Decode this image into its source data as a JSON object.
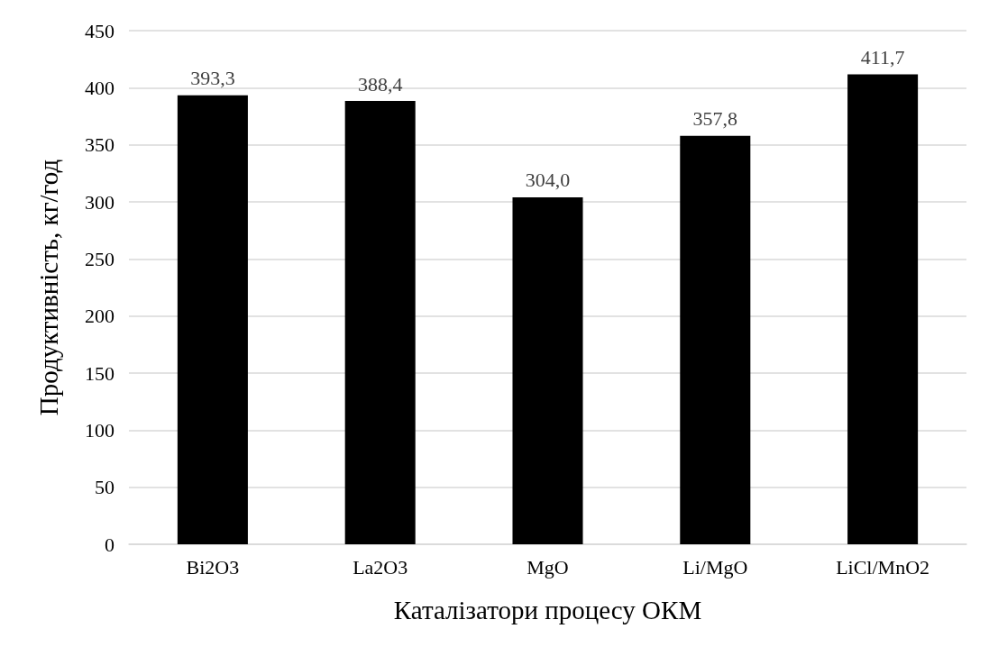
{
  "chart_data": {
    "type": "bar",
    "xlabel": "Каталізатори процесу ОКМ",
    "ylabel": "Продуктивність, кг/год",
    "categories": [
      "Bi2O3",
      "La2O3",
      "MgO",
      "Li/MgO",
      "LiCl/MnO2"
    ],
    "values": [
      393.3,
      388.4,
      304.0,
      357.8,
      411.7
    ],
    "value_labels": [
      "393,3",
      "388,4",
      "304,0",
      "357,8",
      "411,7"
    ],
    "color": "#000000",
    "ylim": [
      0,
      450
    ],
    "yticks": [
      0,
      50,
      100,
      150,
      200,
      250,
      300,
      350,
      400,
      450
    ],
    "grid": "y"
  }
}
